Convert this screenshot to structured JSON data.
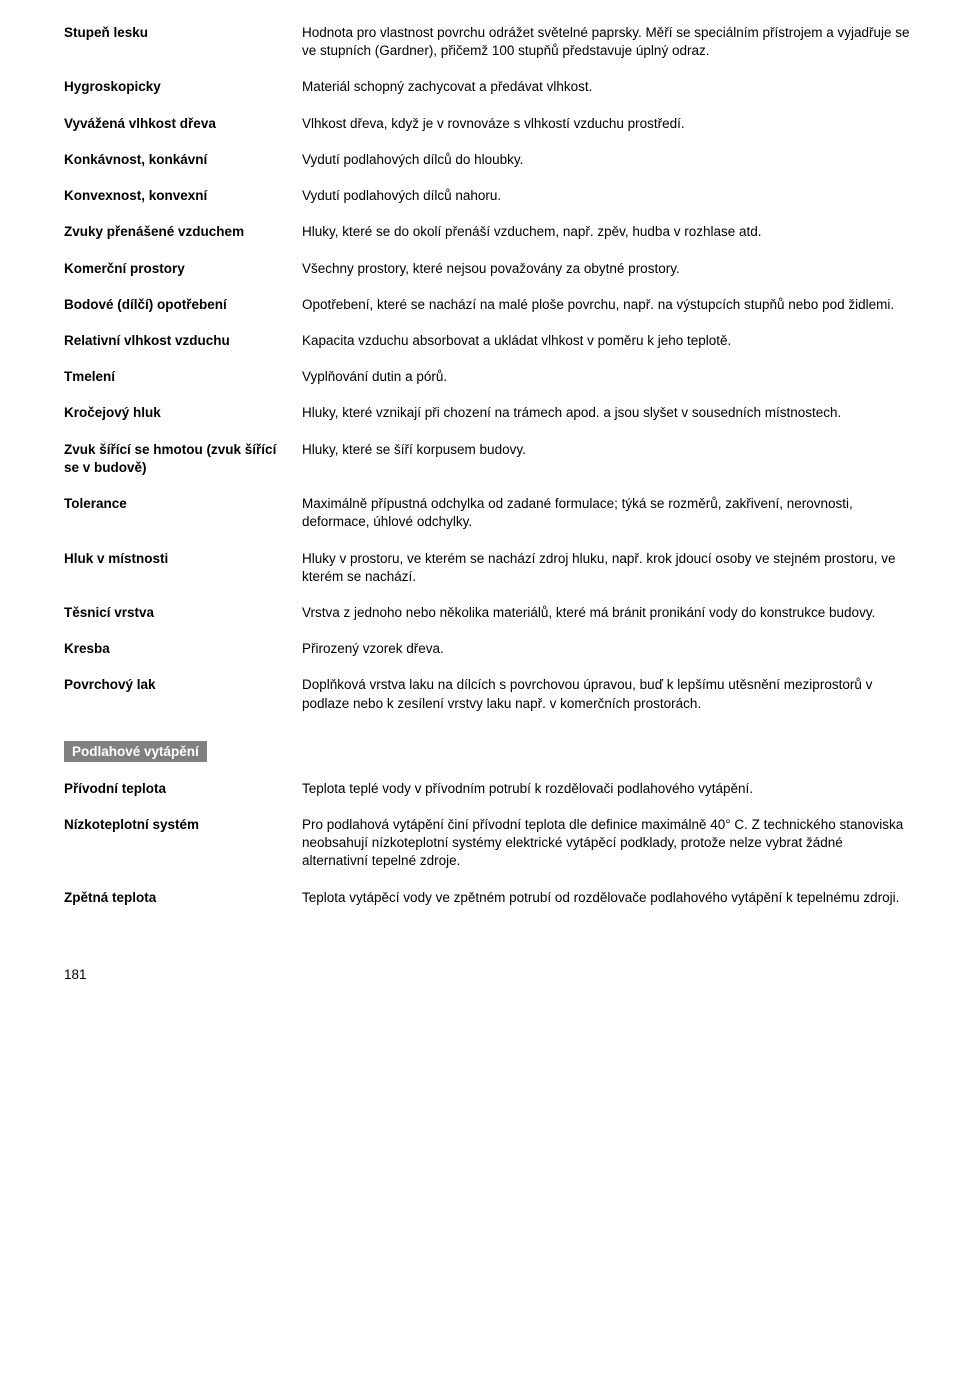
{
  "glossary1": [
    {
      "term": "Stupeň lesku",
      "def": "Hodnota pro vlastnost povrchu odrážet světelné paprsky. Měří se speciálním přístrojem a vyjadřuje se ve stupních (Gardner), přičemž 100 stupňů představuje úplný odraz."
    },
    {
      "term": "Hygroskopicky",
      "def": "Materiál schopný zachycovat a předávat vlhkost."
    },
    {
      "term": "Vyvážená vlhkost dřeva",
      "def": "Vlhkost dřeva, když je v rovnováze s vlhkostí vzduchu prostředí."
    },
    {
      "term": "Konkávnost, konkávní",
      "def": "Vydutí podlahových dílců do hloubky."
    },
    {
      "term": "Konvexnost, konvexní",
      "def": "Vydutí podlahových dílců nahoru."
    },
    {
      "term": "Zvuky přenášené vzduchem",
      "def": "Hluky, které se do okolí přenáší vzduchem, např. zpěv, hudba v rozhlase atd."
    },
    {
      "term": "Komerční prostory",
      "def": "Všechny prostory, které nejsou považovány za obytné prostory."
    },
    {
      "term": "Bodové (dílčí) opotřebení",
      "def": "Opotřebení, které se nachází na malé ploše povrchu, např. na výstupcích stupňů nebo pod židlemi."
    },
    {
      "term": "Relativní vlhkost vzduchu",
      "def": "Kapacita vzduchu absorbovat a ukládat vlhkost v poměru k jeho teplotě."
    },
    {
      "term": "Tmelení",
      "def": "Vyplňování dutin a pórů."
    },
    {
      "term": "Kročejový hluk",
      "def": "Hluky, které vznikají při chození na trámech apod. a jsou slyšet v sousedních místnostech."
    },
    {
      "term": "Zvuk šířící se hmotou (zvuk šířící se v budově)",
      "def": "Hluky, které se šíří korpusem budovy."
    },
    {
      "term": "Tolerance",
      "def": "Maximálně přípustná odchylka od zadané formulace; týká se rozměrů, zakřivení, nerovnosti, deformace, úhlové odchylky."
    },
    {
      "term": "Hluk v místnosti",
      "def": "Hluky v prostoru, ve kterém se nachází zdroj hluku, např. krok jdoucí osoby ve stejném prostoru, ve kterém se nachází."
    },
    {
      "term": "Těsnicí vrstva",
      "def": "Vrstva z jednoho nebo několika materiálů, které má bránit pronikání vody do konstrukce budovy."
    },
    {
      "term": "Kresba",
      "def": "Přirozený vzorek dřeva."
    },
    {
      "term": "Povrchový lak",
      "def": "Doplňková vrstva laku na dílcích s povrchovou úpravou, buď k lepšímu utěsnění meziprostorů v podlaze nebo k zesílení vrstvy laku např. v komerčních prostorách."
    }
  ],
  "section_title": "Podlahové vytápění",
  "glossary2": [
    {
      "term": "Přívodní teplota",
      "def": "Teplota teplé vody v přívodním potrubí k rozdělovači podlahového vytápění."
    },
    {
      "term": "Nízkoteplotní systém",
      "def": "Pro podlahová vytápění činí přívodní teplota dle definice maximálně 40° C. Z technického stanoviska neobsahují nízkoteplotní systémy elektrické vytápěcí podklady, protože nelze vybrat žádné alternativní tepelné zdroje."
    },
    {
      "term": "Zpětná teplota",
      "def": "Teplota vytápěcí vody ve zpětném potrubí od rozdělovače podlahového vytápění k tepelnému zdroji."
    }
  ],
  "page_number": "181"
}
